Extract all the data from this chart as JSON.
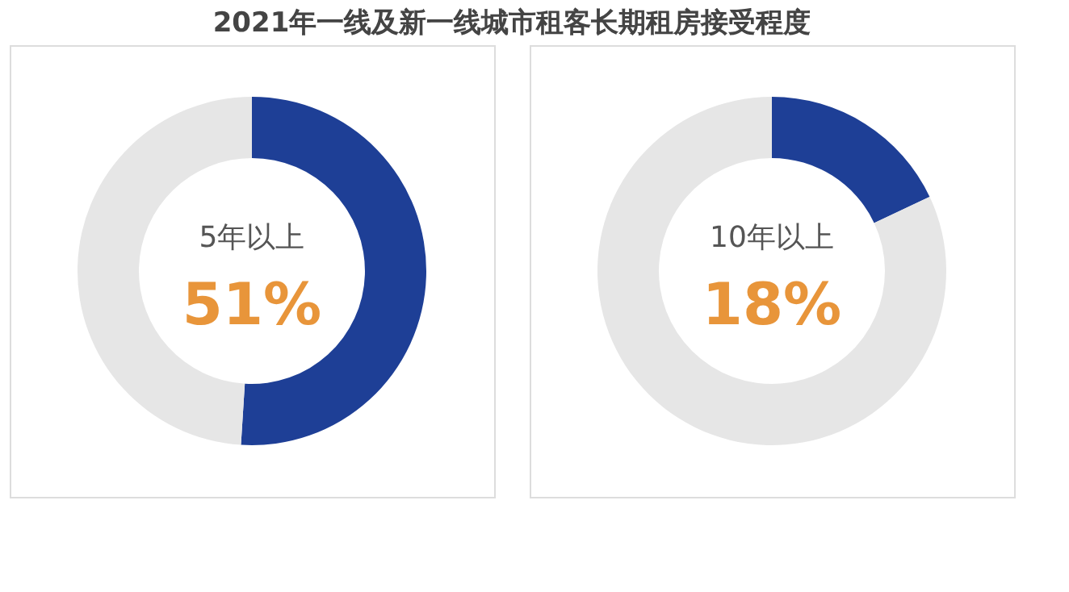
{
  "chart_data": [
    {
      "type": "donut",
      "title": "2021年一线及新一线城市租客长期租房接受程度",
      "categories": [
        "5年以上",
        null
      ],
      "values": [
        51,
        49
      ],
      "colors": [
        "#1e3f96",
        "#e6e6e6"
      ],
      "value_labels": [
        "51%",
        null
      ]
    },
    {
      "type": "donut",
      "categories": [
        "10年以上",
        null
      ],
      "values": [
        18,
        82
      ],
      "colors": [
        "#1e3f96",
        "#e6e6e6"
      ],
      "value_labels": [
        "18%",
        null
      ]
    }
  ]
}
